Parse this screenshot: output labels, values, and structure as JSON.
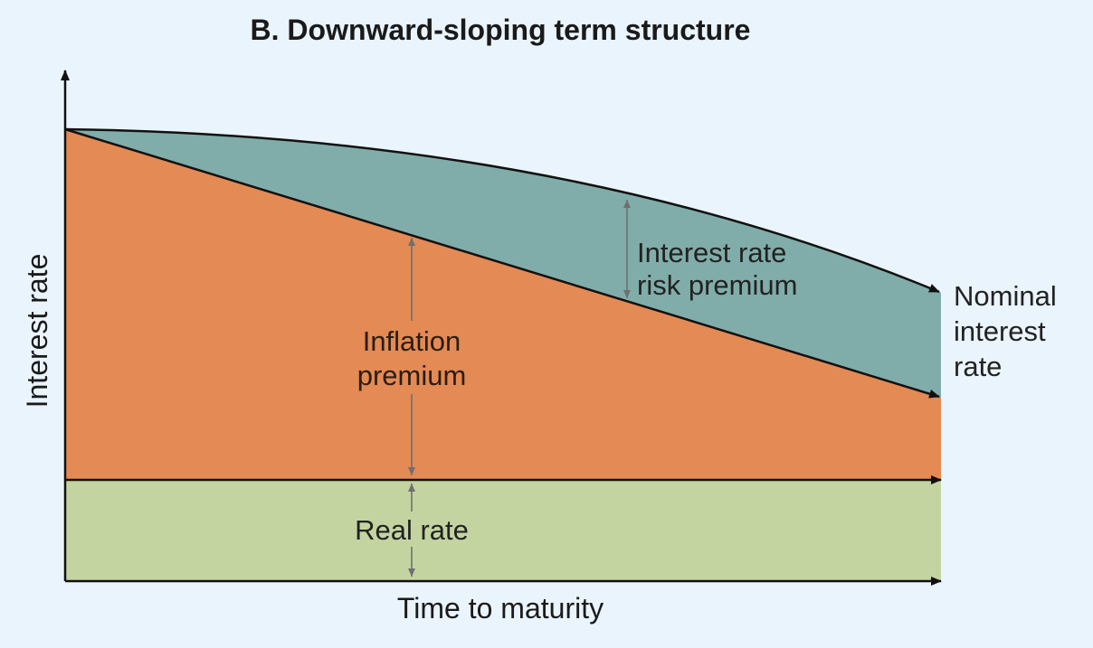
{
  "title": "B. Downward-sloping term structure",
  "axes": {
    "y_label": "Interest rate",
    "x_label": "Time to maturity"
  },
  "regions": {
    "interest_rate_risk_premium": {
      "lines": [
        "Interest rate",
        "risk premium"
      ],
      "color": "#80ada9"
    },
    "inflation_premium": {
      "lines": [
        "Inflation",
        "premium"
      ],
      "color": "#e38a55"
    },
    "real_rate": {
      "label": "Real rate",
      "color": "#c4d4a1"
    }
  },
  "curve_label": {
    "lines": [
      "Nominal",
      "interest",
      "rate"
    ]
  },
  "colors": {
    "background": "#eaf4fc",
    "axis": "#111111",
    "arrow": "#6f6f6f"
  }
}
